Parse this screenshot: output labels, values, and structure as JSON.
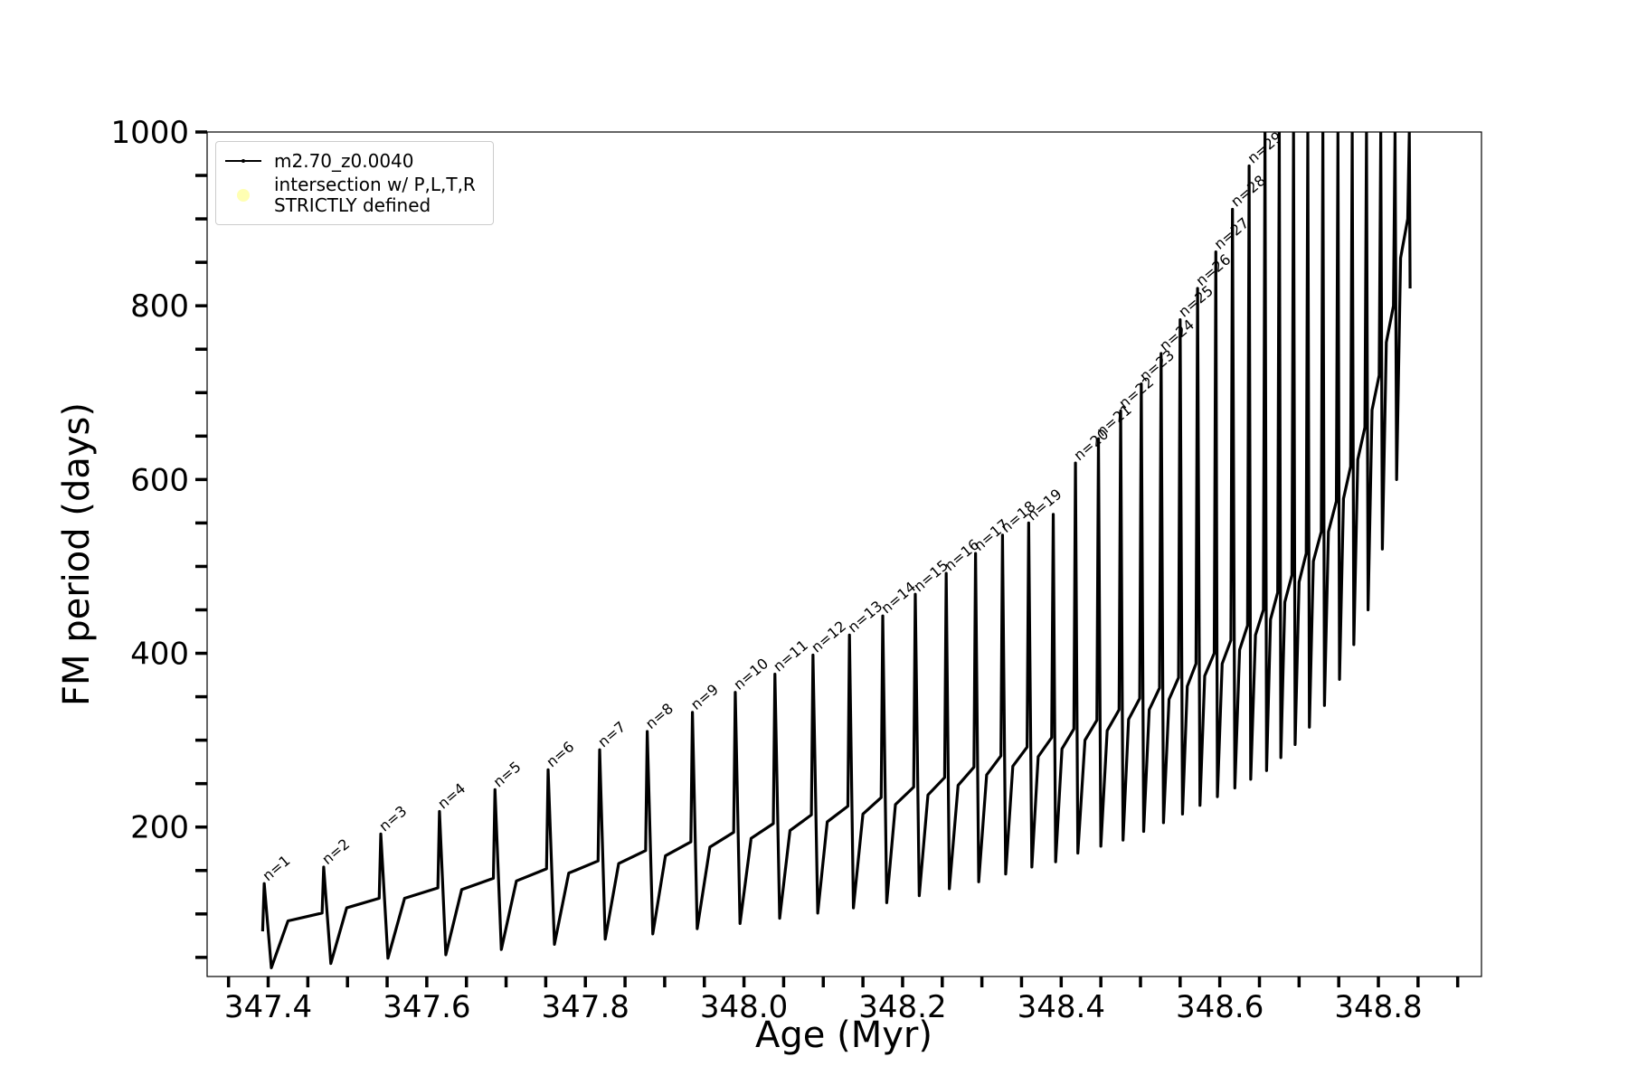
{
  "chart_data": {
    "type": "line",
    "xlabel": "Age (Myr)",
    "ylabel": "FM period (days)",
    "xlim": [
      347.323,
      348.93
    ],
    "ylim": [
      28,
      1000
    ],
    "xticks": [
      347.4,
      347.6,
      347.8,
      {
        "value": 348,
        "label": "348.0"
      },
      348.2,
      348.4,
      348.6,
      348.8
    ],
    "xminorticks": [
      347.35,
      347.45,
      347.5,
      347.55,
      347.65,
      347.7,
      347.75,
      347.85,
      347.9,
      347.95,
      348.05,
      348.1,
      348.15,
      348.25,
      348.3,
      348.35,
      348.45,
      348.5,
      348.55,
      348.65,
      348.7,
      348.75,
      348.85,
      348.9
    ],
    "yticks": [
      200,
      400,
      600,
      800,
      1000
    ],
    "yminorticks": [
      50,
      100,
      150,
      250,
      300,
      350,
      450,
      500,
      550,
      650,
      700,
      750,
      850,
      900,
      950
    ],
    "legend": "upper left",
    "series": [
      {
        "name": "m2.70_z0.0040",
        "type": "line",
        "color": "#000000",
        "x": [
          347.393,
          347.395,
          347.404,
          347.425,
          347.468,
          347.47,
          347.479,
          347.499,
          347.54,
          347.542,
          347.551,
          347.572,
          347.614,
          347.616,
          347.624,
          347.644,
          347.684,
          347.686,
          347.694,
          347.713,
          347.751,
          347.753,
          347.761,
          347.779,
          347.816,
          347.818,
          347.825,
          347.842,
          347.876,
          347.878,
          347.885,
          347.901,
          347.933,
          347.935,
          347.941,
          347.957,
          347.987,
          347.989,
          347.995,
          348.009,
          348.037,
          348.039,
          348.045,
          348.058,
          348.085,
          348.087,
          348.093,
          348.105,
          348.131,
          348.133,
          348.138,
          348.15,
          348.173,
          348.175,
          348.18,
          348.191,
          348.214,
          348.216,
          348.221,
          348.232,
          348.253,
          348.255,
          348.259,
          348.27,
          348.29,
          348.292,
          348.296,
          348.306,
          348.324,
          348.326,
          348.33,
          348.339,
          348.357,
          348.359,
          348.363,
          348.371,
          348.388,
          348.39,
          348.393,
          348.401,
          348.416,
          348.418,
          348.421,
          348.43,
          348.445,
          348.447,
          348.45,
          348.458,
          348.473,
          348.475,
          348.478,
          348.485,
          348.499,
          348.501,
          348.504,
          348.511,
          348.524,
          348.526,
          348.529,
          348.536,
          348.548,
          348.55,
          348.553,
          348.559,
          348.57,
          348.572,
          348.575,
          348.581,
          348.593,
          348.595,
          348.597,
          348.603,
          348.614,
          348.616,
          348.619,
          348.625,
          348.635,
          348.637,
          348.639,
          348.645,
          348.655,
          348.657,
          348.659,
          348.664,
          348.673,
          348.675,
          348.677,
          348.682,
          348.691,
          348.693,
          348.695,
          348.7,
          348.709,
          348.711,
          348.713,
          348.718,
          348.728,
          348.73,
          348.732,
          348.737,
          348.747,
          348.749,
          348.751,
          348.756,
          348.765,
          348.767,
          348.769,
          348.774,
          348.783,
          348.785,
          348.787,
          348.792,
          348.801,
          348.803,
          348.805,
          348.81,
          348.819,
          348.821,
          348.823,
          348.828,
          348.837,
          348.839,
          348.84
        ],
        "values": [
          80,
          135,
          38,
          92,
          101,
          154,
          43,
          107,
          118,
          192,
          49,
          118,
          130,
          218,
          53,
          128,
          141,
          243,
          59,
          138,
          152,
          266,
          65,
          147,
          161,
          289,
          71,
          158,
          173,
          310,
          77,
          167,
          183,
          332,
          83,
          177,
          194,
          355,
          89,
          187,
          204,
          376,
          95,
          196,
          214,
          398,
          101,
          206,
          224,
          421,
          107,
          215,
          234,
          443,
          113,
          226,
          246,
          468,
          121,
          237,
          257,
          492,
          129,
          248,
          269,
          515,
          137,
          260,
          282,
          536,
          146,
          270,
          292,
          550,
          154,
          281,
          303,
          560,
          160,
          290,
          313,
          619,
          170,
          300,
          323,
          647,
          178,
          311,
          335,
          679,
          185,
          324,
          348,
          710,
          195,
          335,
          360,
          745,
          205,
          347,
          372,
          784,
          215,
          362,
          388,
          820,
          225,
          374,
          400,
          862,
          235,
          388,
          415,
          911,
          245,
          404,
          432,
          961,
          255,
          421,
          450,
          1000,
          265,
          439,
          470,
          1000,
          280,
          459,
          490,
          1000,
          295,
          482,
          515,
          1000,
          315,
          506,
          540,
          1000,
          340,
          540,
          575,
          1000,
          370,
          578,
          615,
          1000,
          410,
          623,
          660,
          1000,
          450,
          680,
          720,
          1000,
          520,
          758,
          800,
          1000,
          600,
          855,
          900,
          1000,
          820
        ]
      },
      {
        "name": "intersection w/ P,L,T,R\nSTRICTLY defined",
        "type": "scatter",
        "color": "#ffffb3",
        "x": [],
        "values": []
      }
    ],
    "annotations": [
      {
        "text": "n=1",
        "x": 347.395,
        "y": 135
      },
      {
        "text": "n=2",
        "x": 347.47,
        "y": 154
      },
      {
        "text": "n=3",
        "x": 347.542,
        "y": 192
      },
      {
        "text": "n=4",
        "x": 347.616,
        "y": 218
      },
      {
        "text": "n=5",
        "x": 347.686,
        "y": 243
      },
      {
        "text": "n=6",
        "x": 347.753,
        "y": 266
      },
      {
        "text": "n=7",
        "x": 347.818,
        "y": 289
      },
      {
        "text": "n=8",
        "x": 347.878,
        "y": 310
      },
      {
        "text": "n=9",
        "x": 347.935,
        "y": 332
      },
      {
        "text": "n=10",
        "x": 347.989,
        "y": 355
      },
      {
        "text": "n=11",
        "x": 348.039,
        "y": 376
      },
      {
        "text": "n=12",
        "x": 348.087,
        "y": 398
      },
      {
        "text": "n=13",
        "x": 348.133,
        "y": 421
      },
      {
        "text": "n=14",
        "x": 348.175,
        "y": 443
      },
      {
        "text": "n=15",
        "x": 348.216,
        "y": 468
      },
      {
        "text": "n=16",
        "x": 348.255,
        "y": 492
      },
      {
        "text": "n=17",
        "x": 348.292,
        "y": 515
      },
      {
        "text": "n=18",
        "x": 348.326,
        "y": 536
      },
      {
        "text": "n=19",
        "x": 348.359,
        "y": 550
      },
      {
        "text": "n=20",
        "x": 348.418,
        "y": 619
      },
      {
        "text": "n=21",
        "x": 348.447,
        "y": 647
      },
      {
        "text": "n=22",
        "x": 348.475,
        "y": 679
      },
      {
        "text": "n=23",
        "x": 348.501,
        "y": 710
      },
      {
        "text": "n=24",
        "x": 348.526,
        "y": 745
      },
      {
        "text": "n=25",
        "x": 348.55,
        "y": 784
      },
      {
        "text": "n=26",
        "x": 348.572,
        "y": 820
      },
      {
        "text": "n=27",
        "x": 348.595,
        "y": 862
      },
      {
        "text": "n=28",
        "x": 348.616,
        "y": 911
      },
      {
        "text": "n=29",
        "x": 348.637,
        "y": 961
      }
    ]
  }
}
